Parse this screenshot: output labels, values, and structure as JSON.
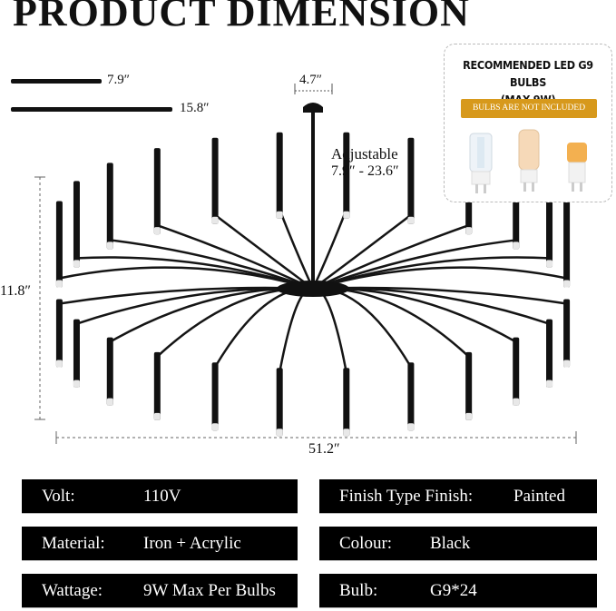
{
  "title": "PRODUCT DIMENSION",
  "dimensions": {
    "scale_short": "7.9″",
    "scale_long": "15.8″",
    "canopy_width": "4.7″",
    "adjustable_label": "Adjustable",
    "adjustable_range": "7.9″ - 23.6″",
    "height": "11.8″",
    "width": "51.2″"
  },
  "bulb_box": {
    "heading_line1": "RECOMMENDED LED G9 BULBS",
    "heading_line2": "(MAX 9W)",
    "note": "BULBS ARE NOT INCLUDED",
    "accent_color": "#d7991c"
  },
  "specs": [
    {
      "label": "Volt:",
      "value": "110V"
    },
    {
      "label": "Finish Type Finish:",
      "value": "Painted"
    },
    {
      "label": "Material:",
      "value": "Iron + Acrylic"
    },
    {
      "label": "Colour:",
      "value": "Black"
    },
    {
      "label": "Wattage:",
      "value": "9W Max Per Bulbs"
    },
    {
      "label": "Bulb:",
      "value": "G9*24"
    }
  ]
}
